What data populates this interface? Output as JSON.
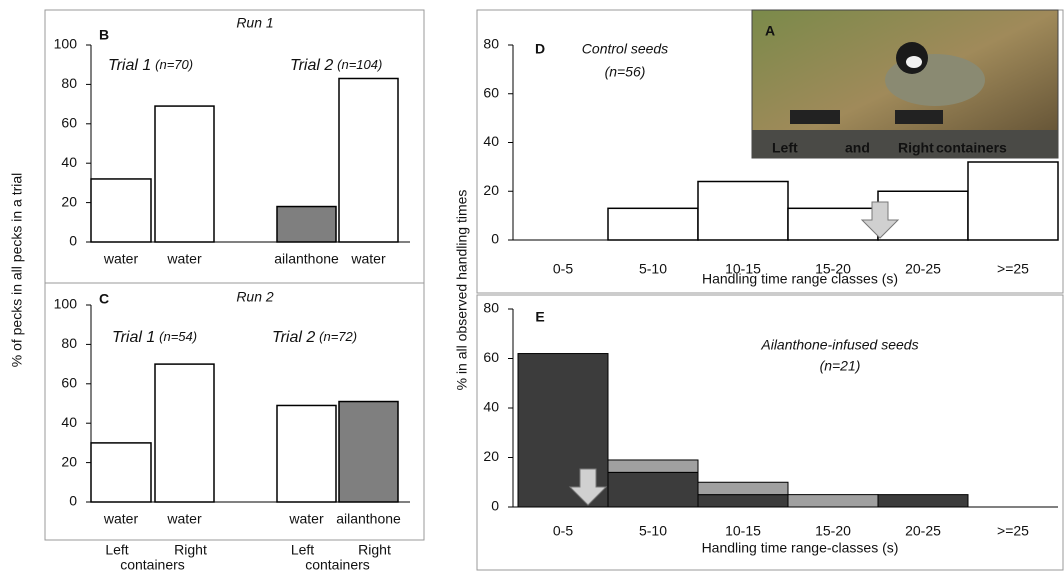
{
  "y_label_left": "% of pecks in all pecks in a trial",
  "y_label_right": "% in all observed handling times",
  "chart_data": [
    {
      "type": "bar",
      "panel": "B",
      "title": "Run 1",
      "categories": [
        "water",
        "water",
        "ailanthone",
        "water"
      ],
      "values": [
        32,
        69,
        18,
        83
      ],
      "colors": [
        "#ffffff",
        "#ffffff",
        "#7f7f7f",
        "#ffffff"
      ],
      "ylim": [
        0,
        100
      ],
      "yticks": [
        0,
        20,
        40,
        60,
        80,
        100
      ],
      "groups": [
        {
          "label": "Trial 1",
          "n": "(n=70)"
        },
        {
          "label": "Trial 2",
          "n": "(n=104)"
        }
      ]
    },
    {
      "type": "bar",
      "panel": "C",
      "title": "Run 2",
      "categories": [
        "water",
        "water",
        "water",
        "ailanthone"
      ],
      "values": [
        30,
        70,
        49,
        51
      ],
      "colors": [
        "#ffffff",
        "#ffffff",
        "#ffffff",
        "#7f7f7f"
      ],
      "ylim": [
        0,
        100
      ],
      "yticks": [
        0,
        20,
        40,
        60,
        80,
        100
      ],
      "groups": [
        {
          "label": "Trial 1",
          "n": "(n=54)"
        },
        {
          "label": "Trial 2",
          "n": "(n=72)"
        }
      ],
      "side_labels": [
        "Left",
        "Right"
      ],
      "side_caption": "containers"
    },
    {
      "type": "histogram",
      "panel": "D",
      "title": "Control seeds",
      "subtitle": "(n=56)",
      "categories": [
        "0-5",
        "5-10",
        "10-15",
        "15-20",
        "20-25",
        ">=25"
      ],
      "values": [
        0,
        13,
        24,
        13,
        20,
        32
      ],
      "color": "#ffffff",
      "ylim": [
        0,
        80
      ],
      "yticks": [
        0,
        20,
        40,
        60,
        80
      ],
      "xlabel": "Handling time range classes (s)",
      "inset": {
        "label": "A",
        "caption": [
          "Left",
          "and",
          "Right",
          "containers"
        ]
      }
    },
    {
      "type": "stacked_histogram",
      "panel": "E",
      "title": "Ailanthone-infused seeds",
      "subtitle": "(n=21)",
      "categories": [
        "0-5",
        "5-10",
        "10-15",
        "15-20",
        "20-25",
        ">=25"
      ],
      "series": [
        {
          "color": "#3c3c3c",
          "values": [
            62,
            14,
            5,
            0,
            5,
            0
          ]
        },
        {
          "color": "#a0a0a0",
          "values": [
            0,
            5,
            5,
            5,
            0,
            0
          ]
        }
      ],
      "ylim": [
        0,
        80
      ],
      "yticks": [
        0,
        20,
        40,
        60,
        80
      ],
      "xlabel": "Handling time range-classes (s)"
    }
  ]
}
